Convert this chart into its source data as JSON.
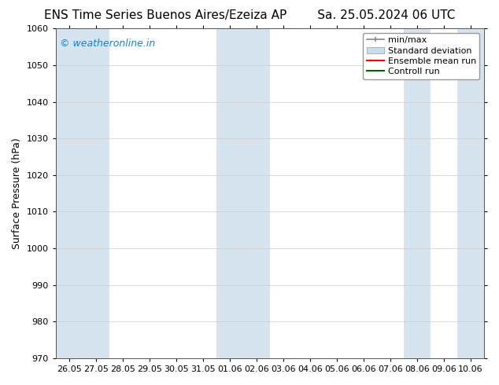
{
  "title_left": "ENS Time Series Buenos Aires/Ezeiza AP",
  "title_right": "Sa. 25.05.2024 06 UTC",
  "ylabel": "Surface Pressure (hPa)",
  "ylim": [
    970,
    1060
  ],
  "yticks": [
    970,
    980,
    990,
    1000,
    1010,
    1020,
    1030,
    1040,
    1050,
    1060
  ],
  "x_tick_labels": [
    "26.05",
    "27.05",
    "28.05",
    "29.05",
    "30.05",
    "31.05",
    "01.06",
    "02.06",
    "03.06",
    "04.06",
    "05.06",
    "06.06",
    "07.06",
    "08.06",
    "09.06",
    "10.06"
  ],
  "shaded_band_indices": [
    0,
    1,
    6,
    7,
    13,
    15
  ],
  "band_color": "#d6e4f0",
  "bg_color": "#ffffff",
  "watermark_text": "© weatheronline.in",
  "watermark_color": "#1a7fd4",
  "legend_items": [
    {
      "label": "min/max",
      "color": "#aaaaaa",
      "type": "minmax"
    },
    {
      "label": "Standard deviation",
      "color": "#c8ddf0",
      "type": "fill"
    },
    {
      "label": "Ensemble mean run",
      "color": "#ff0000",
      "type": "line"
    },
    {
      "label": "Controll run",
      "color": "#006400",
      "type": "line"
    }
  ],
  "title_fontsize": 11,
  "axis_label_fontsize": 9,
  "tick_fontsize": 8,
  "legend_fontsize": 8,
  "watermark_fontsize": 9
}
